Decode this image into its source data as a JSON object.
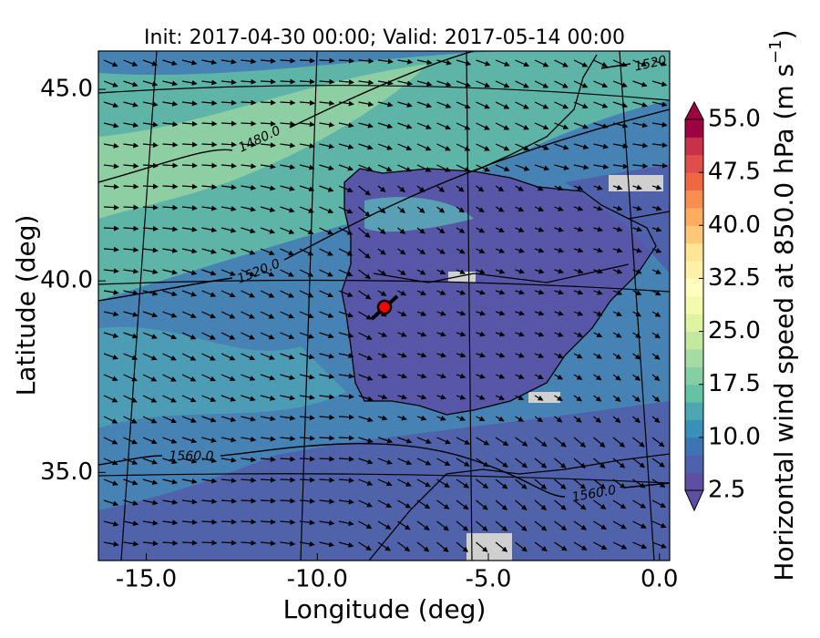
{
  "title": "Init: 2017-04-30 00:00; Valid: 2017-05-14 00:00",
  "x_axis": {
    "label": "Longitude (deg)",
    "lim": [
      -16.4,
      0.3
    ],
    "ticks": [
      {
        "value": -15,
        "label": "-15.0"
      },
      {
        "value": -10,
        "label": "-10.0"
      },
      {
        "value": -5,
        "label": "-5.0"
      },
      {
        "value": 0,
        "label": "0.0"
      }
    ]
  },
  "y_axis": {
    "label": "Latitude (deg)",
    "lim": [
      32.7,
      46.0
    ],
    "ticks": [
      {
        "value": 35,
        "label": "35.0"
      },
      {
        "value": 40,
        "label": "40.0"
      },
      {
        "value": 45,
        "label": "45.0"
      }
    ]
  },
  "colorbar": {
    "label": "Horizontal wind speed at 850.0 hPa (m s",
    "label_superscript": "−1",
    "label_end": ")",
    "lim": [
      2.5,
      55
    ],
    "ticks": [
      2.5,
      {
        "value": 10,
        "label": "10.0"
      },
      17.5,
      {
        "value": 25,
        "label": "25.0"
      },
      32.5,
      {
        "value": 40,
        "label": "40.0"
      },
      47.5,
      {
        "value": 55,
        "label": "55.0"
      }
    ],
    "colors": [
      "#5e4fa2",
      "#4f61aa",
      "#3f74b2",
      "#3990b9",
      "#4ea6b0",
      "#66c2a5",
      "#86cfa5",
      "#a6dba4",
      "#c5e8a0",
      "#e0f3a1",
      "#f3faad",
      "#fffebe",
      "#fff1a8",
      "#fee593",
      "#fdc877",
      "#fdad60",
      "#f88d52",
      "#f06744",
      "#de4e4b",
      "#c9314b",
      "#9e0142"
    ]
  },
  "contour_labels": [
    "1480.0",
    "1520.0",
    "1560.0",
    "1560.0",
    "1520"
  ]
}
